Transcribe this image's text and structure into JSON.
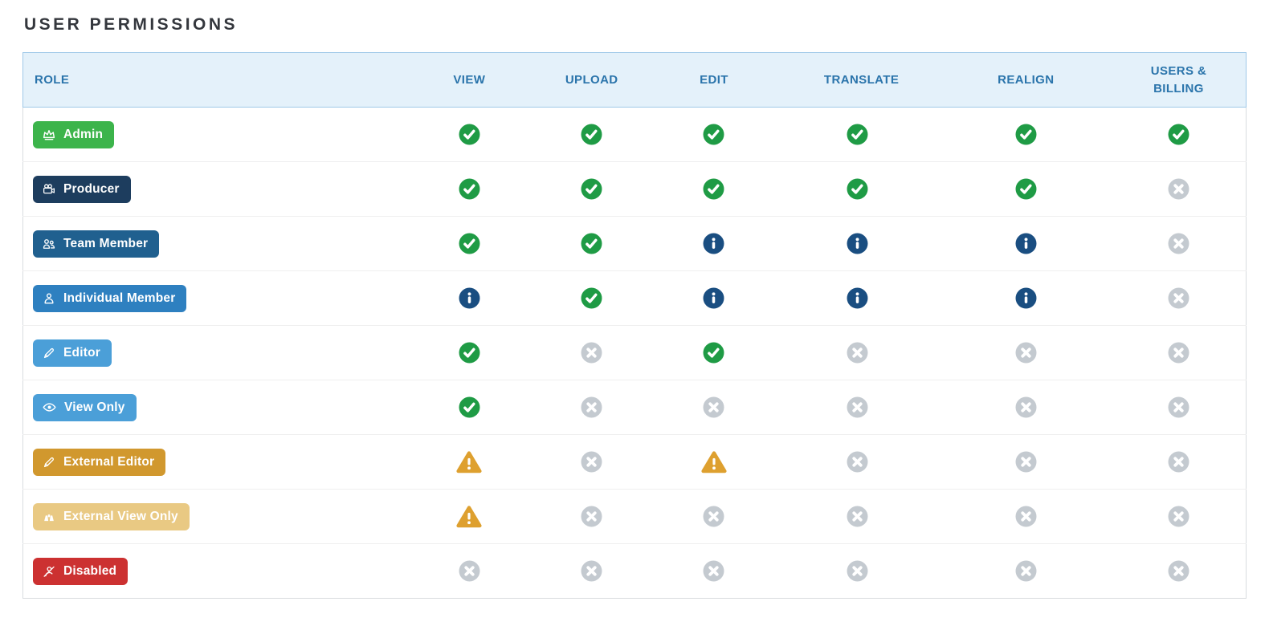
{
  "page": {
    "title": "USER PERMISSIONS"
  },
  "table": {
    "columns": [
      "ROLE",
      "VIEW",
      "UPLOAD",
      "EDIT",
      "TRANSLATE",
      "REALIGN",
      "USERS & BILLING"
    ],
    "status_colors": {
      "allowed": "#1f9b45",
      "info": "#1a4e81",
      "denied": "#c4cad0",
      "warning": "#dea02f"
    },
    "rows": [
      {
        "role": "Admin",
        "icon": "crown-icon",
        "badge_bg": "#3cb44b",
        "badge_fg": "#ffffff",
        "permissions": [
          "allowed",
          "allowed",
          "allowed",
          "allowed",
          "allowed",
          "allowed"
        ]
      },
      {
        "role": "Producer",
        "icon": "video-camera-icon",
        "badge_bg": "#1d3d5e",
        "badge_fg": "#ffffff",
        "permissions": [
          "allowed",
          "allowed",
          "allowed",
          "allowed",
          "allowed",
          "denied"
        ]
      },
      {
        "role": "Team Member",
        "icon": "people-icon",
        "badge_bg": "#20608f",
        "badge_fg": "#ffffff",
        "permissions": [
          "allowed",
          "allowed",
          "info",
          "info",
          "info",
          "denied"
        ]
      },
      {
        "role": "Individual Member",
        "icon": "person-icon",
        "badge_bg": "#2e80c0",
        "badge_fg": "#ffffff",
        "permissions": [
          "info",
          "allowed",
          "info",
          "info",
          "info",
          "denied"
        ]
      },
      {
        "role": "Editor",
        "icon": "pencil-icon",
        "badge_bg": "#4b9fd8",
        "badge_fg": "#ffffff",
        "permissions": [
          "allowed",
          "denied",
          "allowed",
          "denied",
          "denied",
          "denied"
        ]
      },
      {
        "role": "View Only",
        "icon": "eye-icon",
        "badge_bg": "#4b9fd8",
        "badge_fg": "#ffffff",
        "permissions": [
          "allowed",
          "denied",
          "denied",
          "denied",
          "denied",
          "denied"
        ]
      },
      {
        "role": "External Editor",
        "icon": "pencil-icon",
        "badge_bg": "#d1982e",
        "badge_fg": "#ffffff",
        "permissions": [
          "warning",
          "denied",
          "warning",
          "denied",
          "denied",
          "denied"
        ]
      },
      {
        "role": "External View Only",
        "icon": "binoculars-icon",
        "badge_bg": "#e9c983",
        "badge_fg": "#ffffff",
        "permissions": [
          "warning",
          "denied",
          "denied",
          "denied",
          "denied",
          "denied"
        ]
      },
      {
        "role": "Disabled",
        "icon": "user-slash-icon",
        "badge_bg": "#cc3131",
        "badge_fg": "#ffffff",
        "permissions": [
          "denied",
          "denied",
          "denied",
          "denied",
          "denied",
          "denied"
        ]
      }
    ]
  }
}
